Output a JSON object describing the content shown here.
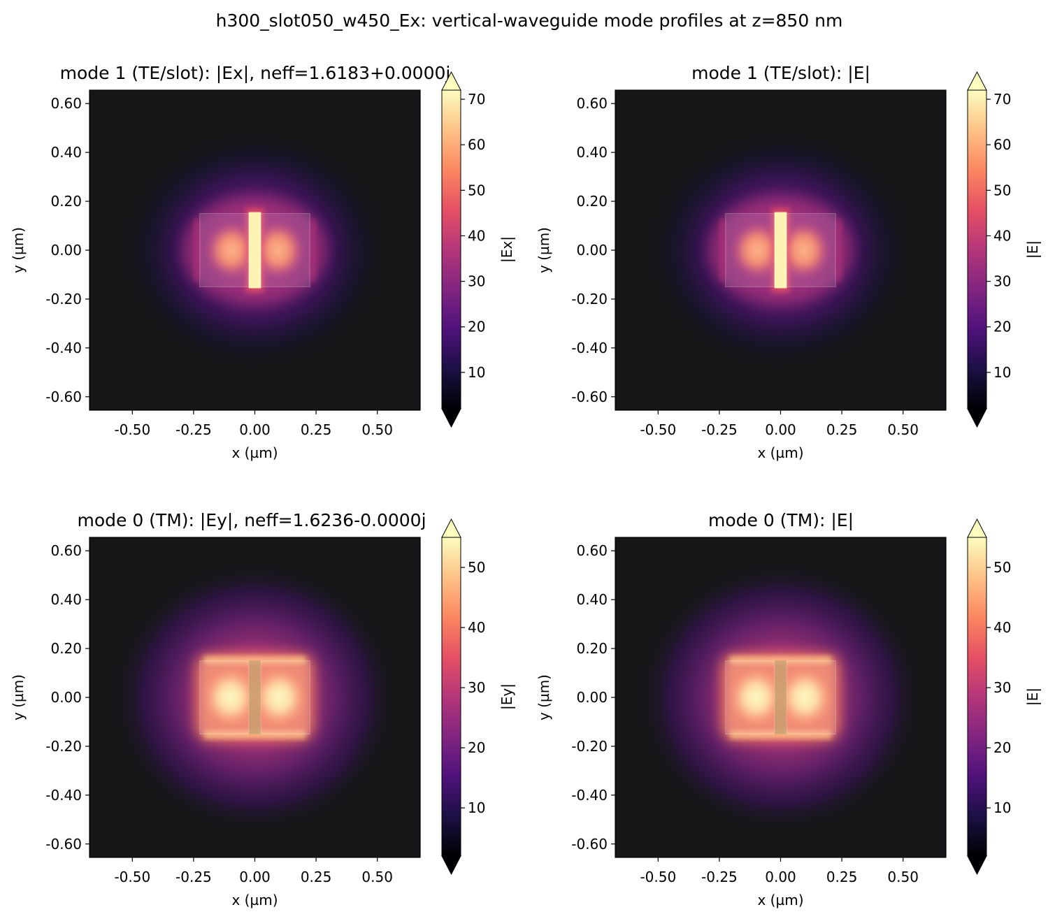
{
  "suptitle": "h300_slot050_w450_Ex: vertical-waveguide mode profiles at z=850 nm",
  "colormap": {
    "name": "magma",
    "stops": [
      "#000004",
      "#1c1044",
      "#4f127b",
      "#812581",
      "#b5367a",
      "#e55064",
      "#fb8761",
      "#fec287",
      "#fcfdbf"
    ],
    "background": "#161619"
  },
  "chart_data": [
    {
      "type": "heatmap",
      "title": "mode 1 (TE/slot): |Ex|, neff=1.6183+0.0000j",
      "xlabel": "x (µm)",
      "ylabel": "y (µm)",
      "colorbar_label": "|Ex|",
      "xlim": [
        -0.675,
        0.675
      ],
      "ylim": [
        -0.655,
        0.655
      ],
      "xticks": [
        "-0.50",
        "-0.25",
        "0.00",
        "0.25",
        "0.50"
      ],
      "xtick_values": [
        -0.5,
        -0.25,
        0.0,
        0.25,
        0.5
      ],
      "yticks": [
        "0.60",
        "0.40",
        "0.20",
        "0.00",
        "-0.20",
        "-0.40",
        "-0.60"
      ],
      "ytick_values": [
        0.6,
        0.4,
        0.2,
        0.0,
        -0.2,
        -0.4,
        -0.6
      ],
      "colorbar_range": [
        2,
        72
      ],
      "colorbar_ticks": [
        "70",
        "60",
        "50",
        "40",
        "30",
        "20",
        "10"
      ],
      "colorbar_tick_values": [
        70,
        60,
        50,
        40,
        30,
        20,
        10
      ],
      "field_max": 72,
      "mode": "te"
    },
    {
      "type": "heatmap",
      "title": "mode 1 (TE/slot): |E|",
      "xlabel": "x (µm)",
      "ylabel": "y (µm)",
      "colorbar_label": "|E|",
      "xlim": [
        -0.675,
        0.675
      ],
      "ylim": [
        -0.655,
        0.655
      ],
      "xticks": [
        "-0.50",
        "-0.25",
        "0.00",
        "0.25",
        "0.50"
      ],
      "xtick_values": [
        -0.5,
        -0.25,
        0.0,
        0.25,
        0.5
      ],
      "yticks": [
        "0.60",
        "0.40",
        "0.20",
        "0.00",
        "-0.20",
        "-0.40",
        "-0.60"
      ],
      "ytick_values": [
        0.6,
        0.4,
        0.2,
        0.0,
        -0.2,
        -0.4,
        -0.6
      ],
      "colorbar_range": [
        2,
        72
      ],
      "colorbar_ticks": [
        "70",
        "60",
        "50",
        "40",
        "30",
        "20",
        "10"
      ],
      "colorbar_tick_values": [
        70,
        60,
        50,
        40,
        30,
        20,
        10
      ],
      "field_max": 72,
      "mode": "te"
    },
    {
      "type": "heatmap",
      "title": "mode 0 (TM): |Ey|, neff=1.6236-0.0000j",
      "xlabel": "x (µm)",
      "ylabel": "y (µm)",
      "colorbar_label": "|Ey|",
      "xlim": [
        -0.675,
        0.675
      ],
      "ylim": [
        -0.655,
        0.655
      ],
      "xticks": [
        "-0.50",
        "-0.25",
        "0.00",
        "0.25",
        "0.50"
      ],
      "xtick_values": [
        -0.5,
        -0.25,
        0.0,
        0.25,
        0.5
      ],
      "yticks": [
        "0.60",
        "0.40",
        "0.20",
        "0.00",
        "-0.20",
        "-0.40",
        "-0.60"
      ],
      "ytick_values": [
        0.6,
        0.4,
        0.2,
        0.0,
        -0.2,
        -0.4,
        -0.6
      ],
      "colorbar_range": [
        2,
        55
      ],
      "colorbar_ticks": [
        "50",
        "40",
        "30",
        "20",
        "10"
      ],
      "colorbar_tick_values": [
        50,
        40,
        30,
        20,
        10
      ],
      "field_max": 55,
      "mode": "tm"
    },
    {
      "type": "heatmap",
      "title": "mode 0 (TM): |E|",
      "xlabel": "x (µm)",
      "ylabel": "y (µm)",
      "colorbar_label": "|E|",
      "xlim": [
        -0.675,
        0.675
      ],
      "ylim": [
        -0.655,
        0.655
      ],
      "xticks": [
        "-0.50",
        "-0.25",
        "0.00",
        "0.25",
        "0.50"
      ],
      "xtick_values": [
        -0.5,
        -0.25,
        0.0,
        0.25,
        0.5
      ],
      "yticks": [
        "0.60",
        "0.40",
        "0.20",
        "0.00",
        "-0.20",
        "-0.40",
        "-0.60"
      ],
      "ytick_values": [
        0.6,
        0.4,
        0.2,
        0.0,
        -0.2,
        -0.4,
        -0.6
      ],
      "colorbar_range": [
        2,
        55
      ],
      "colorbar_ticks": [
        "50",
        "40",
        "30",
        "20",
        "10"
      ],
      "colorbar_tick_values": [
        50,
        40,
        30,
        20,
        10
      ],
      "field_max": 55,
      "mode": "tm"
    }
  ],
  "waveguide": {
    "rail_x_ranges": [
      [
        -0.225,
        -0.025
      ],
      [
        0.025,
        0.225
      ]
    ],
    "y_range": [
      -0.15,
      0.15
    ],
    "slot_x_range": [
      -0.025,
      0.025
    ]
  }
}
